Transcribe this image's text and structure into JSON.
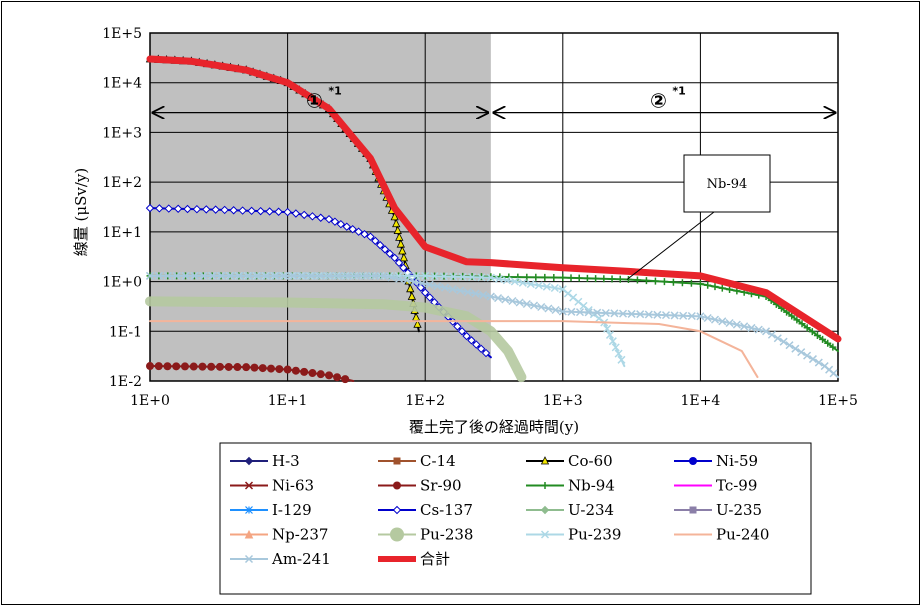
{
  "chart_data": {
    "type": "line",
    "title": "",
    "xlabel": "覆土完了後の経過時間(y)",
    "ylabel": "線量 (μSv/y)",
    "x_scale": "log",
    "y_scale": "log",
    "xlim": [
      1,
      100000
    ],
    "ylim": [
      0.01,
      100000
    ],
    "x_ticks": [
      "1E+0",
      "1E+1",
      "1E+2",
      "1E+3",
      "1E+4",
      "1E+5"
    ],
    "y_ticks": [
      "1E-2",
      "1E-1",
      "1E+0",
      "1E+1",
      "1E+2",
      "1E+3",
      "1E+4",
      "1E+5"
    ],
    "grid": true,
    "legend_position": "bottom",
    "shaded_region": {
      "x_range": [
        1,
        300
      ],
      "color": "#c0c0c0"
    },
    "regions": [
      {
        "label": "①",
        "sup": "*1",
        "x_range": [
          1,
          300
        ]
      },
      {
        "label": "②",
        "sup": "*1",
        "x_range": [
          300,
          100000
        ]
      }
    ],
    "annotation": {
      "text": "Nb-94",
      "points_to": [
        1500,
        1.1
      ]
    },
    "series": [
      {
        "name": "H-3",
        "color": "#1f1f7a",
        "marker": "diamond-filled",
        "points": []
      },
      {
        "name": "C-14",
        "color": "#a0522d",
        "marker": "square-filled",
        "points": []
      },
      {
        "name": "Co-60",
        "color": "#000000",
        "marker": "triangle-yellow",
        "points": [
          [
            1,
            30000
          ],
          [
            2,
            27000
          ],
          [
            5,
            18000
          ],
          [
            10,
            10000
          ],
          [
            20,
            3000
          ],
          [
            40,
            300
          ],
          [
            60,
            20
          ],
          [
            70,
            3
          ],
          [
            80,
            0.5
          ],
          [
            90,
            0.1
          ]
        ]
      },
      {
        "name": "Ni-59",
        "color": "#0000cc",
        "marker": "circle-filled",
        "points": []
      },
      {
        "name": "Ni-63",
        "color": "#8b1a1a",
        "marker": "x",
        "points": []
      },
      {
        "name": "Sr-90",
        "color": "#8b1a1a",
        "marker": "circle-filled",
        "points": [
          [
            1,
            0.02
          ],
          [
            5,
            0.019
          ],
          [
            10,
            0.017
          ],
          [
            20,
            0.013
          ],
          [
            30,
            0.01
          ]
        ]
      },
      {
        "name": "Nb-94",
        "color": "#228b22",
        "marker": "plus",
        "points": [
          [
            1,
            1.3
          ],
          [
            100,
            1.3
          ],
          [
            300,
            1.25
          ],
          [
            1000,
            1.2
          ],
          [
            3000,
            1.1
          ],
          [
            10000,
            0.9
          ],
          [
            30000,
            0.5
          ],
          [
            100000,
            0.04
          ]
        ]
      },
      {
        "name": "Tc-99",
        "color": "#ff00ff",
        "marker": "dash",
        "points": []
      },
      {
        "name": "I-129",
        "color": "#1e90ff",
        "marker": "asterisk",
        "points": []
      },
      {
        "name": "Cs-137",
        "color": "#0000cc",
        "marker": "diamond-open",
        "points": [
          [
            1,
            30
          ],
          [
            3,
            28
          ],
          [
            10,
            25
          ],
          [
            20,
            18
          ],
          [
            40,
            8
          ],
          [
            60,
            3
          ],
          [
            100,
            0.6
          ],
          [
            200,
            0.08
          ],
          [
            300,
            0.03
          ]
        ]
      },
      {
        "name": "U-234",
        "color": "#8fbc8f",
        "marker": "diamond-filled",
        "points": []
      },
      {
        "name": "U-235",
        "color": "#8b7fa8",
        "marker": "square-filled",
        "points": []
      },
      {
        "name": "Np-237",
        "color": "#f4a582",
        "marker": "triangle",
        "points": []
      },
      {
        "name": "Pu-238",
        "color": "#b5c9a0",
        "marker": "circle-big",
        "points": [
          [
            1,
            0.4
          ],
          [
            10,
            0.38
          ],
          [
            50,
            0.35
          ],
          [
            100,
            0.3
          ],
          [
            200,
            0.2
          ],
          [
            300,
            0.1
          ],
          [
            400,
            0.04
          ],
          [
            500,
            0.012
          ]
        ]
      },
      {
        "name": "Pu-239",
        "color": "#add8e6",
        "marker": "x",
        "points": [
          [
            1,
            1.3
          ],
          [
            100,
            1.3
          ],
          [
            300,
            1.2
          ],
          [
            1000,
            0.7
          ],
          [
            2000,
            0.15
          ],
          [
            2800,
            0.02
          ]
        ]
      },
      {
        "name": "Pu-240",
        "color": "#f4b49a",
        "marker": "dash",
        "points": [
          [
            1,
            0.16
          ],
          [
            100,
            0.16
          ],
          [
            1000,
            0.16
          ],
          [
            5000,
            0.14
          ],
          [
            10000,
            0.1
          ],
          [
            20000,
            0.04
          ],
          [
            26000,
            0.012
          ]
        ]
      },
      {
        "name": "Am-241",
        "color": "#a8c8dc",
        "marker": "x",
        "points": [
          [
            1,
            1.3
          ],
          [
            50,
            1.3
          ],
          [
            300,
            0.5
          ],
          [
            1000,
            0.25
          ],
          [
            10000,
            0.2
          ],
          [
            30000,
            0.1
          ],
          [
            80000,
            0.02
          ],
          [
            100000,
            0.012
          ]
        ]
      },
      {
        "name": "合計",
        "color": "#e8242b",
        "marker": "thick-line",
        "points": [
          [
            1,
            30000
          ],
          [
            2,
            27000
          ],
          [
            5,
            18000
          ],
          [
            10,
            10000
          ],
          [
            20,
            3000
          ],
          [
            40,
            300
          ],
          [
            60,
            30
          ],
          [
            100,
            5
          ],
          [
            200,
            2.5
          ],
          [
            300,
            2.4
          ],
          [
            1000,
            1.9
          ],
          [
            3000,
            1.6
          ],
          [
            10000,
            1.3
          ],
          [
            30000,
            0.6
          ],
          [
            100000,
            0.07
          ]
        ]
      }
    ]
  }
}
